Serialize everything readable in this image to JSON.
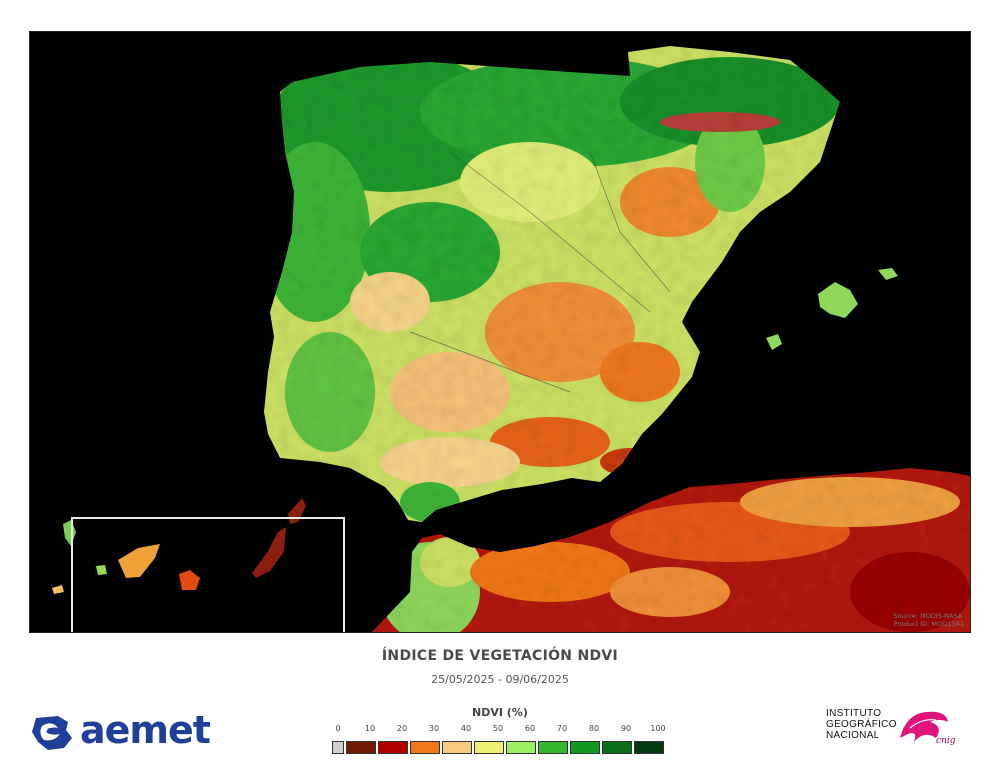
{
  "map": {
    "title": "ÍNDICE DE VEGETACIÓN NDVI",
    "dates": "25/05/2025 - 09/06/2025",
    "credits": [
      "Source: MODIS-NASA",
      "Product ID: MOD13A1"
    ],
    "background_color": "#000000"
  },
  "legend": {
    "title": "NDVI (%)",
    "ticks": [
      "0",
      "10",
      "20",
      "30",
      "40",
      "50",
      "60",
      "70",
      "80",
      "90",
      "100"
    ],
    "colors": [
      "#d0d0d0",
      "#6e1a00",
      "#b30000",
      "#f07818",
      "#f8cc80",
      "#eef070",
      "#9af060",
      "#34b830",
      "#109a20",
      "#0a6e18",
      "#033a14"
    ]
  },
  "logos": {
    "aemet": {
      "text": "aemet",
      "color": "#1f3f9a",
      "icon": "aemet-swirl-icon"
    },
    "ign": {
      "lines": [
        "INSTITUTO",
        "GEOGRÁFICO",
        "NACIONAL"
      ],
      "cnig": "cnig",
      "icon": "ign-brush-icon"
    }
  }
}
